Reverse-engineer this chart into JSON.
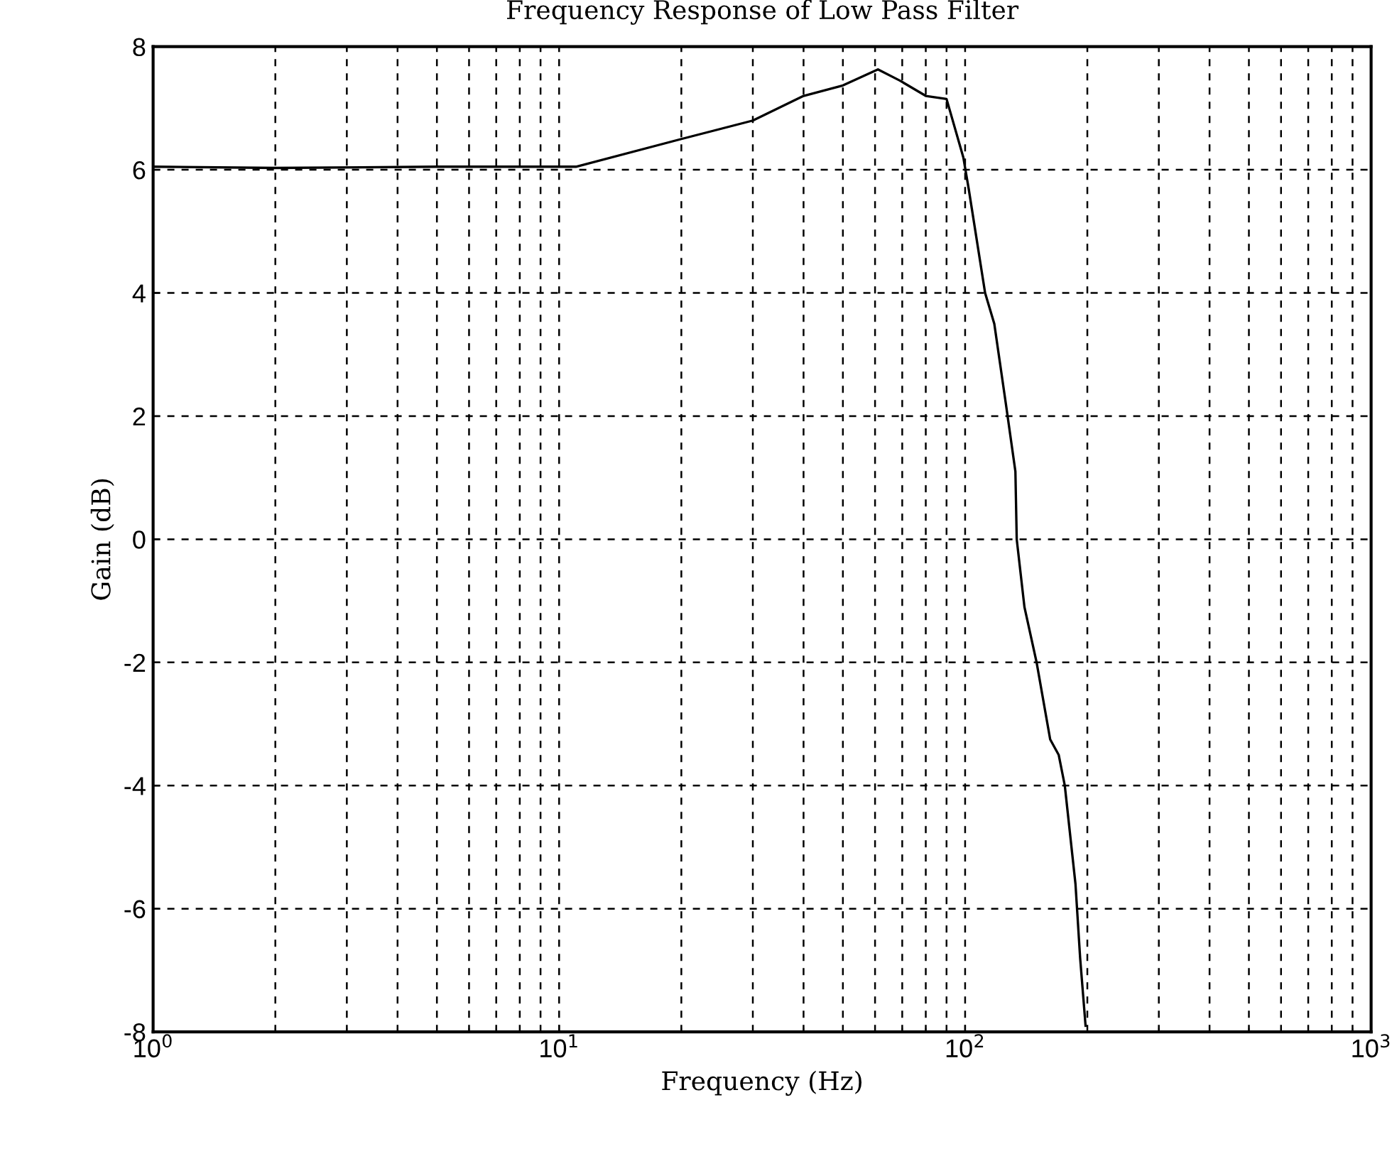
{
  "chart_data": {
    "type": "line",
    "title": "Frequency Response of Low Pass Filter",
    "xlabel": "Frequency (Hz)",
    "ylabel": "Gain (dB)",
    "log": "x",
    "grid": true,
    "xlim": [
      1,
      1000
    ],
    "ylim": [
      -8,
      8
    ],
    "xticks": [
      {
        "value": 1,
        "label": "10$^{0}$"
      },
      {
        "value": 10,
        "label": "10$^{1}$"
      },
      {
        "value": 100,
        "label": "10$^{2}$"
      },
      {
        "value": 1000,
        "label": "10$^{3}$"
      }
    ],
    "yticks": [
      -8,
      -6,
      -4,
      -2,
      0,
      2,
      4,
      6,
      8
    ],
    "series": [
      {
        "color": "#000000",
        "x": [
          1,
          2,
          5,
          11,
          20,
          30,
          40,
          50,
          61,
          69,
          80,
          90,
          99,
          102,
          112,
          118,
          126,
          133,
          134,
          140,
          150,
          162,
          170,
          176,
          187,
          192,
          198
        ],
        "values": [
          6.05,
          6.03,
          6.05,
          6.05,
          6.5,
          6.8,
          7.2,
          7.37,
          7.63,
          7.45,
          7.2,
          7.15,
          6.2,
          5.7,
          4.0,
          3.5,
          2.2,
          1.1,
          0.0,
          -1.1,
          -2.0,
          -3.25,
          -3.5,
          -4.0,
          -5.6,
          -6.8,
          -7.9
        ]
      }
    ]
  }
}
